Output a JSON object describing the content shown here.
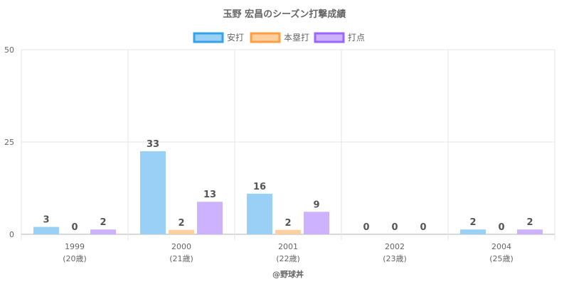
{
  "chart_data": {
    "type": "bar",
    "title": "玉野 宏昌のシーズン打撃成績",
    "categories": [
      "1999",
      "2000",
      "2001",
      "2002",
      "2004"
    ],
    "category_sublabels": [
      "(20歳)",
      "(21歳)",
      "(22歳)",
      "(23歳)",
      "(25歳)"
    ],
    "series": [
      {
        "name": "安打",
        "values": [
          3,
          33,
          16,
          0,
          2
        ],
        "display_values": [
          2,
          22.5,
          11,
          0,
          1.3
        ],
        "color": "#9ad0f5",
        "border": "#36a2eb"
      },
      {
        "name": "本塁打",
        "values": [
          0,
          2,
          2,
          0,
          0
        ],
        "display_values": [
          0,
          1.2,
          1.2,
          0,
          0
        ],
        "color": "#ffcf9f",
        "border": "#ff9f40"
      },
      {
        "name": "打点",
        "values": [
          2,
          13,
          9,
          0,
          2
        ],
        "display_values": [
          1.3,
          8.8,
          6.1,
          0,
          1.3
        ],
        "color": "#ccb2ff",
        "border": "#9966ff"
      }
    ],
    "yticks": [
      0,
      25,
      50
    ],
    "ylim": [
      0,
      50
    ],
    "grid": true,
    "legend": "top-center",
    "credit": "@野球丼"
  }
}
